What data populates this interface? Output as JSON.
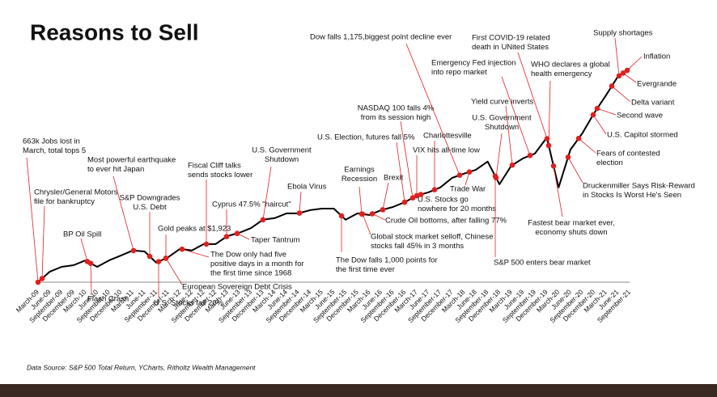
{
  "chart_data": {
    "type": "line",
    "title": "Reasons to Sell",
    "source": "Data Source: S&P 500 Total Return, YCharts, Ritholtz Wealth Management",
    "categories": [
      "March-09",
      "June-09",
      "September-09",
      "December-09",
      "March-10",
      "June-10",
      "September-10",
      "December-10",
      "March-11",
      "June-11",
      "September-11",
      "December-11",
      "March-12",
      "June-12",
      "September-12",
      "December-12",
      "March-13",
      "June-13",
      "September-13",
      "December-13",
      "March-14",
      "June-14",
      "September-14",
      "December-14",
      "March-15",
      "June-15",
      "September-15",
      "December-15",
      "March-16",
      "June-16",
      "September-16",
      "December-16",
      "March-17",
      "June-17",
      "September-17",
      "December-17",
      "March-18",
      "June-18",
      "September-18",
      "December-18",
      "March-19",
      "June-19",
      "September-19",
      "December-19",
      "March-20",
      "June-20",
      "September-20",
      "December-20",
      "March-21",
      "June-21",
      "September-21"
    ],
    "values": [
      1.0,
      1.33,
      1.48,
      1.53,
      1.68,
      1.48,
      1.68,
      1.83,
      1.99,
      1.96,
      1.61,
      1.78,
      2.04,
      1.99,
      2.19,
      2.19,
      2.44,
      2.54,
      2.69,
      2.95,
      3.0,
      3.15,
      3.15,
      3.25,
      3.3,
      3.3,
      2.95,
      3.15,
      3.1,
      3.25,
      3.35,
      3.5,
      3.7,
      3.81,
      3.96,
      4.26,
      4.39,
      4.51,
      4.77,
      4.06,
      4.64,
      4.87,
      5.02,
      5.52,
      3.96,
      5.14,
      5.65,
      6.28,
      6.84,
      7.42,
      7.67
    ],
    "color": "#000000",
    "marker_color": "#e02020",
    "annotations": [
      {
        "lines": [
          "663k Jobs lost in",
          "March, total tops 5"
        ]
      },
      {
        "lines": [
          "Chrysler/General Motors",
          "file for bankruptcy"
        ]
      },
      {
        "lines": [
          "BP Oil Spill"
        ]
      },
      {
        "lines": [
          "Flash Crash"
        ]
      },
      {
        "lines": [
          "Most powerful earthquake",
          "to ever hit Japan"
        ]
      },
      {
        "lines": [
          "S&P Downgrades",
          "U.S. Debt"
        ]
      },
      {
        "lines": [
          "U.S. Stocks fall 20%"
        ]
      },
      {
        "lines": [
          "European Sovereign Debt Crisis"
        ]
      },
      {
        "lines": [
          "Gold peaks at $1,923"
        ]
      },
      {
        "lines": [
          "Fiscal Cliff talks",
          "sends stocks lower"
        ]
      },
      {
        "lines": [
          "The Dow only had five",
          "positive days in a month for",
          "the first time since 1968"
        ]
      },
      {
        "lines": [
          "Cyprus 47.5% \"haircut\""
        ]
      },
      {
        "lines": [
          "Taper Tantrum"
        ]
      },
      {
        "lines": [
          "U.S. Government",
          "Shutdown"
        ]
      },
      {
        "lines": [
          "Ebola Virus"
        ]
      },
      {
        "lines": [
          "Earnings",
          "Recession"
        ]
      },
      {
        "lines": [
          "The Dow falls 1,000 points for",
          "the first time ever"
        ]
      },
      {
        "lines": [
          "Global stock market selloff, Chinese",
          "stocks fall 45% in 3 months"
        ]
      },
      {
        "lines": [
          "Crude Oil bottoms, after falling 77%"
        ]
      },
      {
        "lines": [
          "Brexit"
        ]
      },
      {
        "lines": [
          "U.S. Election, futures fall 5%"
        ]
      },
      {
        "lines": [
          "NASDAQ 100 falls 4%",
          "from its  session high"
        ]
      },
      {
        "lines": [
          "Dow falls 1,175,biggest point decline ever"
        ]
      },
      {
        "lines": [
          "Charlottesville"
        ]
      },
      {
        "lines": [
          "VIX hits all-time low"
        ]
      },
      {
        "lines": [
          "U.S. Stocks go",
          "nowhere for 20 months"
        ]
      },
      {
        "lines": [
          "Trade War"
        ]
      },
      {
        "lines": [
          "First COVID-19 related",
          "death in UNited States"
        ]
      },
      {
        "lines": [
          "Emergency Fed injection",
          "into repo market"
        ]
      },
      {
        "lines": [
          "Yield curve inverts"
        ]
      },
      {
        "lines": [
          "U.S. Government",
          "Shutdown"
        ]
      },
      {
        "lines": [
          "S&P 500 enters bear market"
        ]
      },
      {
        "lines": [
          "Fastest bear market ever,",
          "economy shuts down"
        ]
      },
      {
        "lines": [
          "WHO declares a global",
          "health emergency"
        ]
      },
      {
        "lines": [
          "Supply shortages"
        ]
      },
      {
        "lines": [
          "Inflation"
        ]
      },
      {
        "lines": [
          "Evergrande"
        ]
      },
      {
        "lines": [
          "Delta variant"
        ]
      },
      {
        "lines": [
          "Second wave"
        ]
      },
      {
        "lines": [
          "U.S. Capitol stormed"
        ]
      },
      {
        "lines": [
          "Fears of contested",
          "election"
        ]
      },
      {
        "lines": [
          "Druckenmiller Says Risk-Reward",
          "in Stocks Is Worst He's Seen"
        ]
      }
    ]
  }
}
